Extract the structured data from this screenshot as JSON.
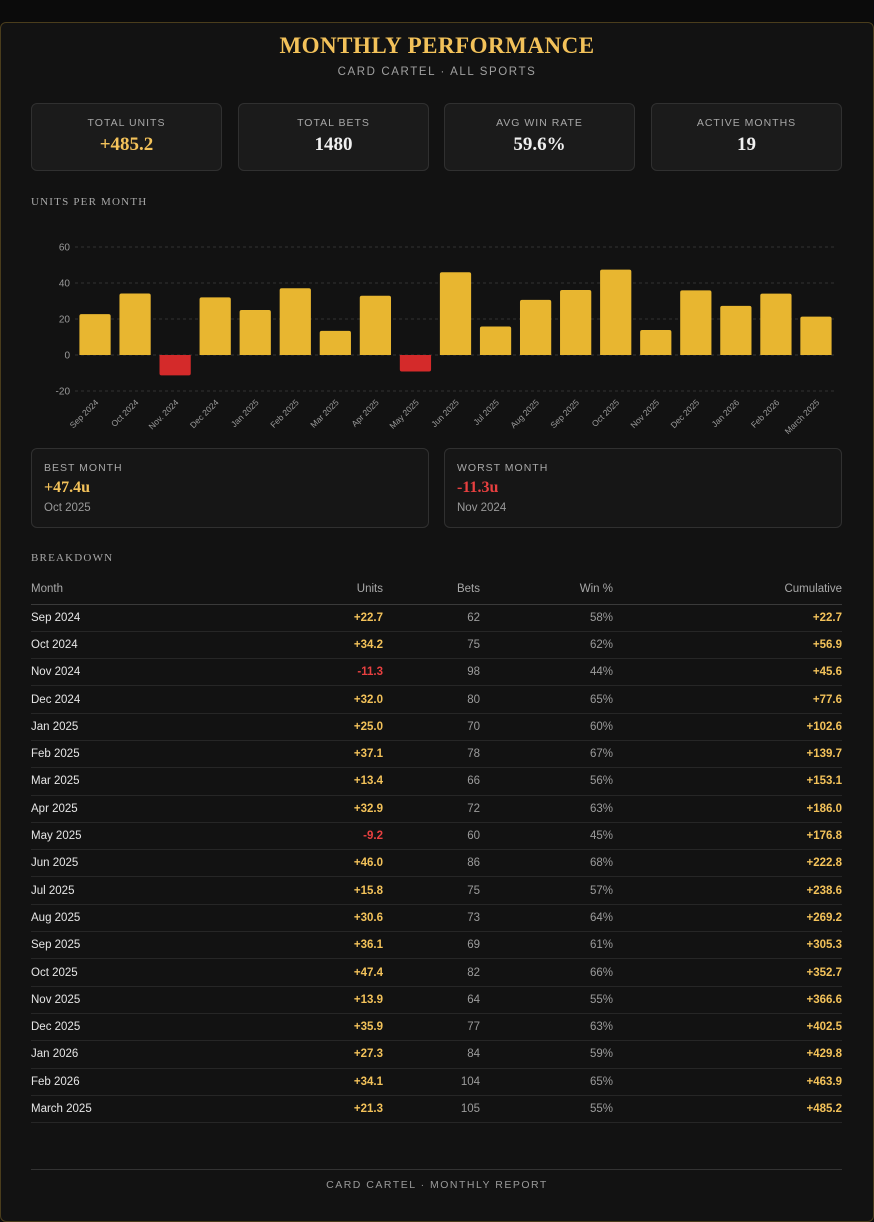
{
  "header": {
    "title": "MONTHLY PERFORMANCE",
    "subtitle": "CARD CARTEL · ALL SPORTS"
  },
  "stats": [
    {
      "label": "TOTAL UNITS",
      "value": "+485.2"
    },
    {
      "label": "TOTAL BETS",
      "value": "1480"
    },
    {
      "label": "AVG WIN RATE",
      "value": "59.6%"
    },
    {
      "label": "ACTIVE MONTHS",
      "value": "19"
    }
  ],
  "chart_section_label": "UNITS PER MONTH",
  "chart_data": {
    "type": "bar",
    "categories": [
      "Sep 2024",
      "Oct 2024",
      "Nov. 2024",
      "Dec 2024",
      "Jan 2025",
      "Feb 2025",
      "Mar 2025",
      "Apr 2025",
      "May 2025",
      "Jun 2025",
      "Jul 2025",
      "Aug 2025",
      "Sep 2025",
      "Oct 2025",
      "Nov 2025",
      "Dec 2025",
      "Jan 2026",
      "Feb 2026",
      "March 2025"
    ],
    "values": [
      22.7,
      34.2,
      -11.3,
      32.0,
      25.0,
      37.1,
      13.4,
      32.9,
      -9.2,
      46.0,
      15.8,
      30.6,
      36.1,
      47.4,
      13.9,
      35.9,
      27.3,
      34.1,
      21.3
    ],
    "ylim": [
      -20,
      60
    ],
    "yticks": [
      60,
      40,
      20,
      0,
      -20
    ],
    "grid": true,
    "colors": {
      "positive": "#e8b630",
      "negative": "#d42a2a"
    }
  },
  "best": {
    "label": "BEST MONTH",
    "value": "+47.4u",
    "month": "Oct 2025"
  },
  "worst": {
    "label": "WORST MONTH",
    "value": "-11.3u",
    "month": "Nov 2024"
  },
  "breakdown_label": "BREAKDOWN",
  "table": {
    "headers": [
      "Month",
      "Units",
      "Bets",
      "Win %",
      "Cumulative"
    ],
    "rows": [
      [
        "Sep 2024",
        "+22.7",
        "62",
        "58%",
        "+22.7"
      ],
      [
        "Oct 2024",
        "+34.2",
        "75",
        "62%",
        "+56.9"
      ],
      [
        "Nov 2024",
        "-11.3",
        "98",
        "44%",
        "+45.6"
      ],
      [
        "Dec 2024",
        "+32.0",
        "80",
        "65%",
        "+77.6"
      ],
      [
        "Jan 2025",
        "+25.0",
        "70",
        "60%",
        "+102.6"
      ],
      [
        "Feb 2025",
        "+37.1",
        "78",
        "67%",
        "+139.7"
      ],
      [
        "Mar 2025",
        "+13.4",
        "66",
        "56%",
        "+153.1"
      ],
      [
        "Apr 2025",
        "+32.9",
        "72",
        "63%",
        "+186.0"
      ],
      [
        "May 2025",
        "-9.2",
        "60",
        "45%",
        "+176.8"
      ],
      [
        "Jun 2025",
        "+46.0",
        "86",
        "68%",
        "+222.8"
      ],
      [
        "Jul 2025",
        "+15.8",
        "75",
        "57%",
        "+238.6"
      ],
      [
        "Aug 2025",
        "+30.6",
        "73",
        "64%",
        "+269.2"
      ],
      [
        "Sep 2025",
        "+36.1",
        "69",
        "61%",
        "+305.3"
      ],
      [
        "Oct 2025",
        "+47.4",
        "82",
        "66%",
        "+352.7"
      ],
      [
        "Nov 2025",
        "+13.9",
        "64",
        "55%",
        "+366.6"
      ],
      [
        "Dec 2025",
        "+35.9",
        "77",
        "63%",
        "+402.5"
      ],
      [
        "Jan 2026",
        "+27.3",
        "84",
        "59%",
        "+429.8"
      ],
      [
        "Feb 2026",
        "+34.1",
        "104",
        "65%",
        "+463.9"
      ],
      [
        "March 2025",
        "+21.3",
        "105",
        "55%",
        "+485.2"
      ]
    ]
  },
  "footer": "CARD CARTEL · MONTHLY REPORT"
}
